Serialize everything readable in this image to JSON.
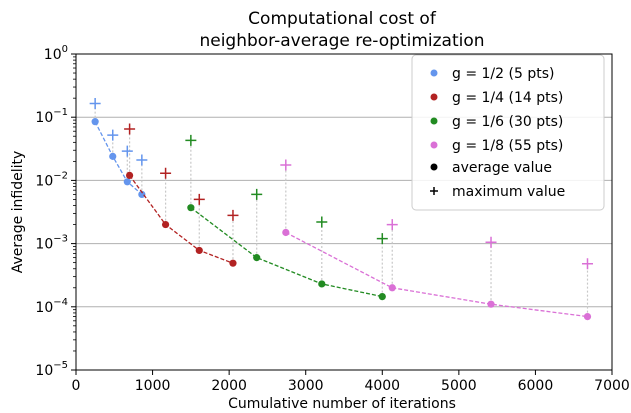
{
  "chart_data": {
    "type": "scatter",
    "title": [
      "Computational cost of",
      "neighbor-average re-optimization"
    ],
    "xlabel": "Cumulative number of iterations",
    "ylabel": "Average infidelity",
    "xlim": [
      0,
      7000
    ],
    "ylim": [
      1e-05,
      1
    ],
    "yscale": "log",
    "grid": "horizontal",
    "legend_position": "top-right",
    "x_ticks": [
      0,
      1000,
      2000,
      3000,
      4000,
      5000,
      6000,
      7000
    ],
    "x_tick_labels": [
      "0",
      "1000",
      "2000",
      "3000",
      "4000",
      "5000",
      "6000",
      "7000"
    ],
    "y_ticks": [
      1e-05,
      0.0001,
      0.001,
      0.01,
      0.1,
      1
    ],
    "y_tick_labels": [
      {
        "base": "10",
        "exp": "−5"
      },
      {
        "base": "10",
        "exp": "−4"
      },
      {
        "base": "10",
        "exp": "−3"
      },
      {
        "base": "10",
        "exp": "−2"
      },
      {
        "base": "10",
        "exp": "−1"
      },
      {
        "base": "10",
        "exp": "0"
      }
    ],
    "series": [
      {
        "name": "g = 1/2 (5 pts)",
        "color": "#6495ed",
        "points": [
          {
            "x": 250,
            "avg": 0.085,
            "max": 0.165
          },
          {
            "x": 480,
            "avg": 0.024,
            "max": 0.052
          },
          {
            "x": 670,
            "avg": 0.0095,
            "max": 0.029
          },
          {
            "x": 860,
            "avg": 0.006,
            "max": 0.021
          }
        ]
      },
      {
        "name": "g = 1/4 (14 pts)",
        "color": "#b22222",
        "points": [
          {
            "x": 700,
            "avg": 0.012,
            "max": 0.065
          },
          {
            "x": 1170,
            "avg": 0.002,
            "max": 0.013
          },
          {
            "x": 1610,
            "avg": 0.00078,
            "max": 0.005
          },
          {
            "x": 2050,
            "avg": 0.00049,
            "max": 0.0028
          }
        ]
      },
      {
        "name": "g = 1/6 (30 pts)",
        "color": "#228b22",
        "points": [
          {
            "x": 1500,
            "avg": 0.0037,
            "max": 0.043
          },
          {
            "x": 2360,
            "avg": 0.0006,
            "max": 0.006
          },
          {
            "x": 3210,
            "avg": 0.00023,
            "max": 0.0022
          },
          {
            "x": 4000,
            "avg": 0.000145,
            "max": 0.0012
          }
        ]
      },
      {
        "name": "g = 1/8 (55 pts)",
        "color": "#da70d6",
        "points": [
          {
            "x": 2740,
            "avg": 0.0015,
            "max": 0.0175
          },
          {
            "x": 4130,
            "avg": 0.0002,
            "max": 0.002
          },
          {
            "x": 5420,
            "avg": 0.00011,
            "max": 0.00105
          },
          {
            "x": 6680,
            "avg": 7e-05,
            "max": 0.00048
          }
        ]
      }
    ],
    "legend_markers": [
      {
        "label": "average value",
        "marker": "dot"
      },
      {
        "label": "maximum value",
        "marker": "plus"
      }
    ]
  }
}
